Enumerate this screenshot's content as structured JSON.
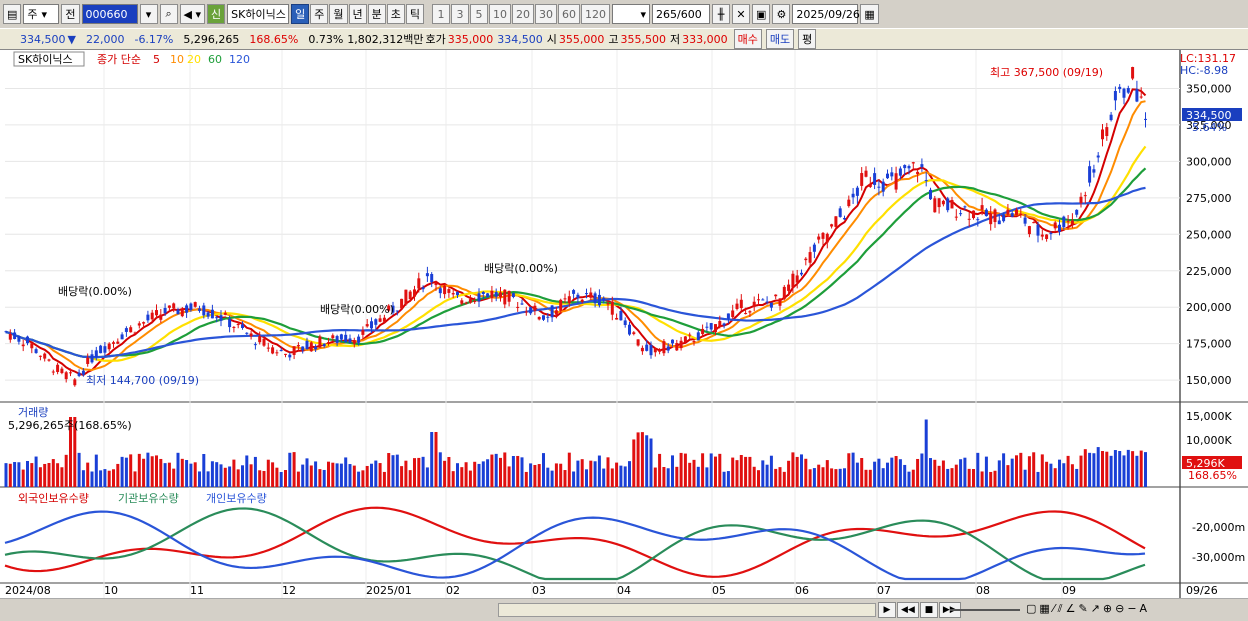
{
  "toolbar": {
    "chart_type": "주",
    "prev_label": "전",
    "stock_code": "000660",
    "market_badge": "신",
    "stock_name": "SK하이닉스",
    "periods": [
      "일",
      "주",
      "월",
      "년",
      "분",
      "초",
      "틱"
    ],
    "active_period": "일",
    "intervals": [
      "1",
      "3",
      "5",
      "10",
      "20",
      "30",
      "60",
      "120"
    ],
    "count": "265",
    "total": "/600",
    "date": "2025/09/26"
  },
  "quote": {
    "price": "334,500",
    "change_arrow": "▼",
    "change": "22,000",
    "change_pct": "-6.17%",
    "volume": "5,296,265",
    "vol_ratio": "168.65%",
    "turnover": "0.73%",
    "amount": "1,802,312백만",
    "bid_label": "호가",
    "bid": "335,000",
    "ask": "334,500",
    "open_label": "시",
    "open": "355,000",
    "high_label": "고",
    "high": "355,500",
    "low_label": "저",
    "low": "333,000",
    "buy_label": "매수",
    "sell_label": "매도",
    "eval_label": "평"
  },
  "price_panel": {
    "legend_name": "SK하이닉스",
    "legend_ma_title": "종가 단순",
    "ma_labels": [
      "5",
      "10",
      "20",
      "60",
      "120"
    ],
    "ma_colors": [
      "#d40000",
      "#ff8c00",
      "#ffe000",
      "#1e9e3a",
      "#2a55d8"
    ],
    "lc_label": "LC:131.17",
    "hc_label": "HC:-8.98",
    "current_price": "334,500",
    "current_pct": "-5.64%",
    "high_annotation": "최고 367,500 (09/19)",
    "low_annotation": "최저 144,700 (09/19)",
    "dividend_labels": [
      "배당락(0.00%)",
      "배당락(0.00%)",
      "배당락(0.00%)"
    ],
    "y_ticks": [
      "350,000",
      "325,000",
      "300,000",
      "275,000",
      "250,000",
      "225,000",
      "200,000",
      "175,000",
      "150,000"
    ]
  },
  "volume_panel": {
    "title": "거래량",
    "value": "5,296,265주(168.65%)",
    "y_ticks": [
      "15,000K",
      "10,000K"
    ],
    "badge_value": "5,296K",
    "badge_pct": "168.65%"
  },
  "holdings_panel": {
    "series": [
      "외국인보유수량",
      "기관보유수량",
      "개인보유수량"
    ],
    "y_ticks": [
      "-20,000m",
      "-30,000m"
    ]
  },
  "x_axis": {
    "labels": [
      "2024/08",
      "10",
      "11",
      "12",
      "2025/01",
      "02",
      "03",
      "04",
      "05",
      "06",
      "07",
      "08",
      "09",
      "09/26"
    ]
  },
  "chart_data": {
    "type": "candlestick",
    "series": [
      {
        "name": "SK하이닉스",
        "close_points": [
          [
            "2024/08",
            177000
          ],
          [
            "2024/08",
            158000
          ],
          [
            "2024/09",
            144700
          ],
          [
            "2024/09",
            168000
          ],
          [
            "2024/10",
            195000
          ],
          [
            "2024/10",
            205000
          ],
          [
            "2024/11",
            192000
          ],
          [
            "2024/11",
            195000
          ],
          [
            "2024/12",
            175000
          ],
          [
            "2024/12",
            165000
          ],
          [
            "2025/01",
            178000
          ],
          [
            "2025/01",
            222000
          ],
          [
            "2025/02",
            205000
          ],
          [
            "2025/02",
            210000
          ],
          [
            "2025/03",
            190000
          ],
          [
            "2025/03",
            210000
          ],
          [
            "2025/04",
            165000
          ],
          [
            "2025/04",
            178000
          ],
          [
            "2025/05",
            198000
          ],
          [
            "2025/05",
            205000
          ],
          [
            "2025/06",
            255000
          ],
          [
            "2025/06",
            290000
          ],
          [
            "2025/07",
            268000
          ],
          [
            "2025/07",
            295000
          ],
          [
            "2025/08",
            260000
          ],
          [
            "2025/08",
            265000
          ],
          [
            "2025/09",
            330000
          ],
          [
            "2025/09",
            367500
          ],
          [
            "2025/09/26",
            334500
          ]
        ]
      },
      {
        "name": "5",
        "values": []
      },
      {
        "name": "10",
        "values": []
      },
      {
        "name": "20",
        "values": []
      },
      {
        "name": "60",
        "values": []
      },
      {
        "name": "120",
        "values": []
      }
    ],
    "ylim": [
      135000,
      375000
    ],
    "volume_ylim": [
      0,
      16000000
    ]
  }
}
